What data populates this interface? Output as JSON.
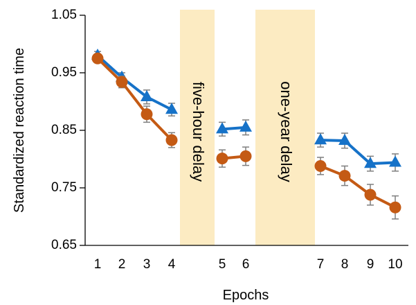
{
  "chart_data": {
    "type": "line",
    "xlabel": "Epochs",
    "ylabel": "Standardized reaction time",
    "ylim": [
      0.65,
      1.05
    ],
    "yticks": [
      "0.65",
      "0.75",
      "0.85",
      "0.95",
      "1.05"
    ],
    "x": [
      1,
      2,
      3,
      4,
      5,
      6,
      7,
      8,
      9,
      10
    ],
    "x_tick_labels": [
      "1",
      "2",
      "3",
      "4",
      "5",
      "6",
      "7",
      "8",
      "9",
      "10"
    ],
    "grid": false,
    "legend": null,
    "series": [
      {
        "marker": "triangle",
        "color": "#1672c8",
        "segments": [
          [
            1,
            2,
            3,
            4
          ],
          [
            5,
            6
          ],
          [
            7,
            8,
            9,
            10
          ]
        ],
        "values": [
          0.98,
          0.942,
          0.908,
          0.886,
          0.852,
          0.855,
          0.833,
          0.832,
          0.792,
          0.794
        ],
        "errors": [
          0.007,
          0.008,
          0.012,
          0.011,
          0.012,
          0.013,
          0.012,
          0.013,
          0.013,
          0.015
        ]
      },
      {
        "marker": "circle",
        "color": "#c45a14",
        "segments": [
          [
            1,
            2,
            3,
            4
          ],
          [
            5,
            6
          ],
          [
            7,
            8,
            9,
            10
          ]
        ],
        "values": [
          0.975,
          0.934,
          0.878,
          0.833,
          0.801,
          0.805,
          0.788,
          0.771,
          0.738,
          0.716
        ],
        "errors": [
          0.007,
          0.01,
          0.014,
          0.013,
          0.015,
          0.016,
          0.015,
          0.017,
          0.018,
          0.02
        ]
      }
    ],
    "delay_bands": [
      {
        "label": "five-hour delay",
        "after_x": 4,
        "color": "#fcebc2"
      },
      {
        "label": "one-year delay",
        "after_x": 6,
        "color": "#fcebc2"
      }
    ]
  }
}
